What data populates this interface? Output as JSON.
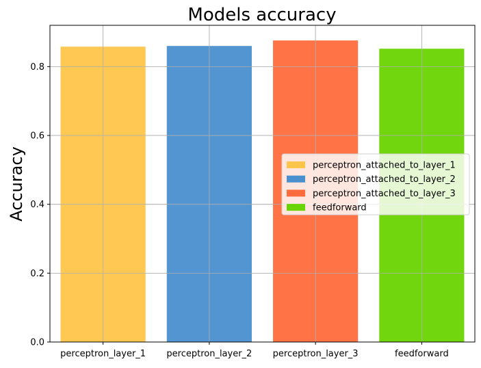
{
  "chart_data": {
    "type": "bar",
    "title": "Models accuracy",
    "xlabel": "",
    "ylabel": "Accuracy",
    "categories": [
      "perceptron_layer_1",
      "perceptron_layer_2",
      "perceptron_layer_3",
      "feedforward"
    ],
    "values": [
      0.858,
      0.86,
      0.876,
      0.852
    ],
    "colors": [
      "#FFC54A",
      "#4A8FCE",
      "#FF6B3D",
      "#69D400"
    ],
    "ylim": [
      0,
      0.92
    ],
    "yticks": [
      0.0,
      0.2,
      0.4,
      0.6,
      0.8
    ],
    "ytick_labels": [
      "0.0",
      "0.2",
      "0.4",
      "0.6",
      "0.8"
    ],
    "grid": true,
    "legend": {
      "position": "center-right",
      "entries": [
        "perceptron_attached_to_layer_1",
        "perceptron_attached_to_layer_2",
        "perceptron_attached_to_layer_3",
        "feedforward"
      ]
    }
  }
}
